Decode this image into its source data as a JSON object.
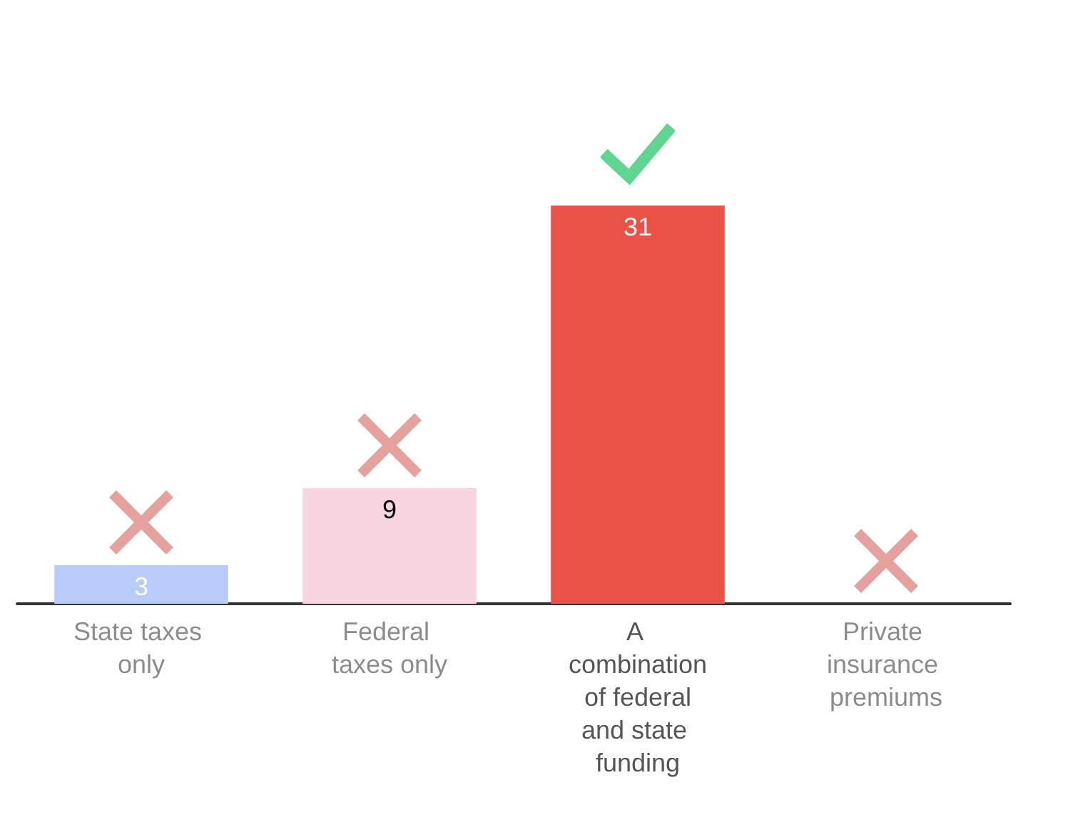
{
  "chart_data": {
    "type": "bar",
    "categories": [
      "State taxes only",
      "Federal taxes only",
      "A combination of federal and state funding",
      "Private insurance premiums"
    ],
    "values": [
      3,
      9,
      31,
      0
    ],
    "colors": [
      "#b8cbfb",
      "#f7d5e1",
      "#eb5247",
      "#e8a09b"
    ],
    "value_labels": [
      "3",
      "9",
      "31",
      null
    ]
  }
}
